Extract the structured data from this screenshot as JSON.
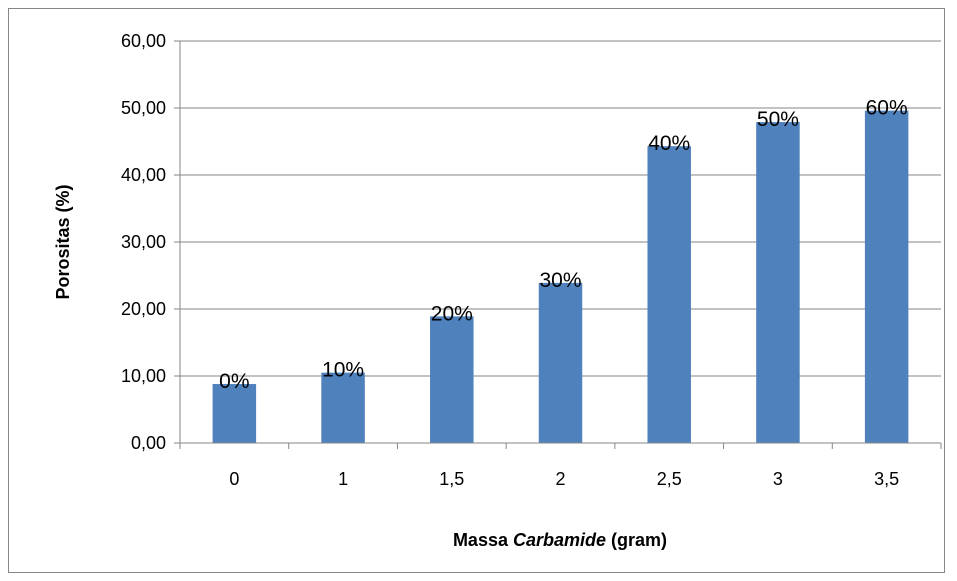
{
  "chart_data": {
    "type": "bar",
    "title": "",
    "categories": [
      "0",
      "1",
      "1,5",
      "2",
      "2,5",
      "3",
      "3,5"
    ],
    "values": [
      8.8,
      10.5,
      18.9,
      23.9,
      44.3,
      47.9,
      49.6
    ],
    "data_labels": [
      "0%",
      "10%",
      "20%",
      "30%",
      "40%",
      "50%",
      "60%"
    ],
    "ylabel": "Porositas (%)",
    "xlabel": {
      "prefix": "Massa ",
      "italic": "Carbamide",
      "suffix": " (gram)"
    },
    "ylim": [
      0,
      60
    ],
    "yticks": [
      "0,00",
      "10,00",
      "20,00",
      "30,00",
      "40,00",
      "50,00",
      "60,00"
    ],
    "grid": true,
    "legend": "none",
    "colors": {
      "bar": "#4F81BD",
      "grid": "#868686",
      "axis": "#868686"
    }
  }
}
